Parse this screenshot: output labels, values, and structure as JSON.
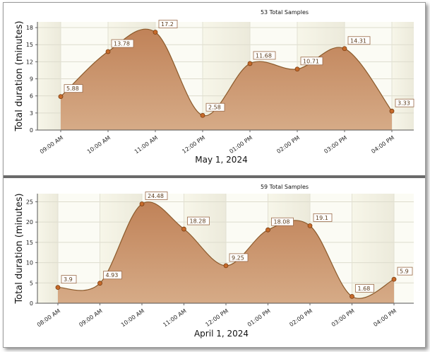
{
  "chart_data": [
    {
      "type": "area",
      "summary": "53 Total Samples",
      "xlabel": "May  1, 2024",
      "ylabel": "Total duration (minutes)",
      "categories": [
        "09:00 AM",
        "10:00 AM",
        "11:00 AM",
        "12:00 PM",
        "01:00 PM",
        "02:00 PM",
        "03:00 PM",
        "04:00 PM"
      ],
      "values": [
        5.88,
        13.78,
        17.2,
        2.58,
        11.68,
        10.71,
        14.31,
        3.33
      ],
      "labels": [
        "5.88",
        "13.78",
        "17.2",
        "2.58",
        "11.68",
        "10.71",
        "14.31",
        "3.33"
      ],
      "ylim": [
        0,
        19
      ],
      "yticks": [
        "0",
        "3",
        "6",
        "9",
        "12",
        "15",
        "18"
      ],
      "grid": true,
      "colors": {
        "fill": "#c9956b",
        "line": "#8b5a2b",
        "marker": "#c66a2a"
      }
    },
    {
      "type": "area",
      "summary": "59 Total Samples",
      "xlabel": "April  1, 2024",
      "ylabel": "Total duration (minutes)",
      "categories": [
        "08:00 AM",
        "09:00 AM",
        "10:00 AM",
        "11:00 AM",
        "12:00 PM",
        "01:00 PM",
        "02:00 PM",
        "03:00 PM",
        "04:00 PM"
      ],
      "values": [
        3.9,
        4.93,
        24.48,
        18.28,
        9.25,
        18.08,
        19.1,
        1.68,
        5.9
      ],
      "labels": [
        "3.9",
        "4.93",
        "24.48",
        "18.28",
        "9.25",
        "18.08",
        "19.1",
        "1.68",
        "5.9"
      ],
      "ylim": [
        0,
        27
      ],
      "yticks": [
        "0",
        "5",
        "10",
        "15",
        "20",
        "25"
      ],
      "grid": true,
      "colors": {
        "fill": "#c9956b",
        "line": "#8b5a2b",
        "marker": "#c66a2a"
      }
    }
  ]
}
